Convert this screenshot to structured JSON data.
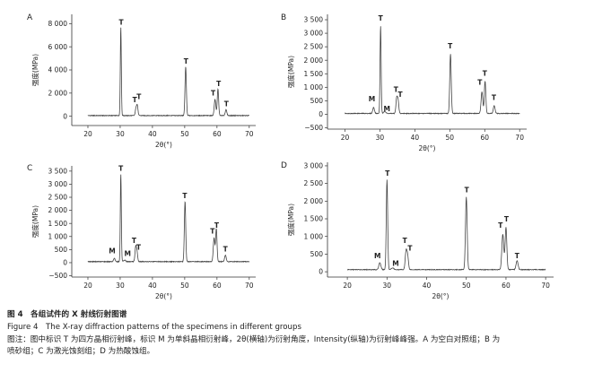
{
  "figure": {
    "title_cn": "图 4　各组试件的 X 射线衍射图谱",
    "title_en": "Figure 4　The X-ray diffraction patterns of the specimens in different groups",
    "note_line1": "图注：图中标识 T 为四方晶相衍射峰，标识 M 为单斜晶相衍射峰，2θ(横轴)为衍射角度，Intensity(纵轴)为衍射峰峰强。A 为空白对照组；B 为",
    "note_line2": "喷砂组；C 为激光蚀刻组；D 为热酸蚀组。"
  },
  "colors": {
    "line": "#444444",
    "text": "#222222"
  },
  "chart_data": [
    {
      "type": "line",
      "panel": "A",
      "xlabel": "2θ(°)",
      "ylabel": "强度(MPa)",
      "xlim": [
        15,
        72
      ],
      "ylim": [
        -800,
        8800
      ],
      "xticks": [
        20,
        30,
        40,
        50,
        60,
        70
      ],
      "yticks": [
        0,
        2000,
        4000,
        6000,
        8000
      ],
      "ytick_labels": [
        "0",
        "2 000",
        "4 000",
        "6 000",
        "8 000"
      ],
      "baseline": 60,
      "peaks": [
        {
          "x": 30.2,
          "y": 7600,
          "w": 0.22
        },
        {
          "x": 34.9,
          "y": 600,
          "w": 0.3
        },
        {
          "x": 35.3,
          "y": 850,
          "w": 0.3
        },
        {
          "x": 50.3,
          "y": 4200,
          "w": 0.3
        },
        {
          "x": 59.4,
          "y": 1400,
          "w": 0.35
        },
        {
          "x": 60.3,
          "y": 2300,
          "w": 0.3
        },
        {
          "x": 62.8,
          "y": 500,
          "w": 0.35
        }
      ],
      "labels": [
        {
          "text": "T",
          "x": 30.3,
          "y": 7900
        },
        {
          "text": "T",
          "x": 34.5,
          "y": 1200
        },
        {
          "text": "T",
          "x": 35.8,
          "y": 1500
        },
        {
          "text": "T",
          "x": 50.4,
          "y": 4550
        },
        {
          "text": "T",
          "x": 58.8,
          "y": 1800
        },
        {
          "text": "T",
          "x": 60.5,
          "y": 2600
        },
        {
          "text": "T",
          "x": 62.9,
          "y": 850
        }
      ]
    },
    {
      "type": "line",
      "panel": "B",
      "xlabel": "2θ(°)",
      "ylabel": "强度(MPa)",
      "xlim": [
        15,
        72
      ],
      "ylim": [
        -550,
        3700
      ],
      "xticks": [
        20,
        30,
        40,
        50,
        60,
        70
      ],
      "yticks": [
        -500,
        0,
        500,
        1000,
        1500,
        2000,
        2500,
        3000,
        3500
      ],
      "ytick_labels": [
        "−500",
        "0",
        "500",
        "1 000",
        "1 500",
        "2 000",
        "2 500",
        "3 000",
        "3 500"
      ],
      "baseline": 30,
      "peaks": [
        {
          "x": 28.2,
          "y": 220,
          "w": 0.35
        },
        {
          "x": 30.2,
          "y": 3250,
          "w": 0.22
        },
        {
          "x": 31.4,
          "y": 80,
          "w": 0.4
        },
        {
          "x": 34.8,
          "y": 550,
          "w": 0.3
        },
        {
          "x": 35.2,
          "y": 450,
          "w": 0.3
        },
        {
          "x": 50.2,
          "y": 2200,
          "w": 0.3
        },
        {
          "x": 59.2,
          "y": 800,
          "w": 0.35
        },
        {
          "x": 60.1,
          "y": 1200,
          "w": 0.3
        },
        {
          "x": 62.7,
          "y": 280,
          "w": 0.35
        }
      ],
      "labels": [
        {
          "text": "M",
          "x": 27.7,
          "y": 480
        },
        {
          "text": "T",
          "x": 30.2,
          "y": 3460
        },
        {
          "text": "M",
          "x": 32.0,
          "y": 120
        },
        {
          "text": "T",
          "x": 34.6,
          "y": 820
        },
        {
          "text": "T",
          "x": 35.8,
          "y": 650
        },
        {
          "text": "T",
          "x": 50.1,
          "y": 2440
        },
        {
          "text": "T",
          "x": 58.6,
          "y": 1090
        },
        {
          "text": "T",
          "x": 60.0,
          "y": 1430
        },
        {
          "text": "T",
          "x": 62.6,
          "y": 530
        }
      ]
    },
    {
      "type": "line",
      "panel": "C",
      "xlabel": "2θ(°)",
      "ylabel": "强度(MPa)",
      "xlim": [
        15,
        72
      ],
      "ylim": [
        -550,
        3700
      ],
      "xticks": [
        20,
        30,
        40,
        50,
        60,
        70
      ],
      "yticks": [
        -500,
        0,
        500,
        1000,
        1500,
        2000,
        2500,
        3000,
        3500
      ],
      "ytick_labels": [
        "−500",
        "0",
        "500",
        "1 000",
        "1 500",
        "2 000",
        "2 500",
        "3 000",
        "3 500"
      ],
      "baseline": 40,
      "peaks": [
        {
          "x": 28.2,
          "y": 120,
          "w": 0.35
        },
        {
          "x": 30.2,
          "y": 3350,
          "w": 0.22
        },
        {
          "x": 31.4,
          "y": 60,
          "w": 0.4
        },
        {
          "x": 34.8,
          "y": 550,
          "w": 0.3
        },
        {
          "x": 35.2,
          "y": 350,
          "w": 0.3
        },
        {
          "x": 50.1,
          "y": 2300,
          "w": 0.3
        },
        {
          "x": 59.1,
          "y": 900,
          "w": 0.35
        },
        {
          "x": 59.8,
          "y": 1250,
          "w": 0.3
        },
        {
          "x": 62.6,
          "y": 250,
          "w": 0.35
        }
      ],
      "labels": [
        {
          "text": "M",
          "x": 27.5,
          "y": 360
        },
        {
          "text": "T",
          "x": 30.2,
          "y": 3510
        },
        {
          "text": "M",
          "x": 32.3,
          "y": 260
        },
        {
          "text": "T",
          "x": 34.3,
          "y": 760
        },
        {
          "text": "T",
          "x": 35.7,
          "y": 500
        },
        {
          "text": "T",
          "x": 50.0,
          "y": 2470
        },
        {
          "text": "T",
          "x": 58.6,
          "y": 1120
        },
        {
          "text": "T",
          "x": 59.9,
          "y": 1340
        },
        {
          "text": "T",
          "x": 62.6,
          "y": 430
        }
      ]
    },
    {
      "type": "line",
      "panel": "D",
      "xlabel": "2θ(°)",
      "ylabel": "强度(MPa)",
      "xlim": [
        15,
        72
      ],
      "ylim": [
        -150,
        3100
      ],
      "xticks": [
        20,
        30,
        40,
        50,
        60,
        70
      ],
      "yticks": [
        0,
        500,
        1000,
        1500,
        2000,
        2500,
        3000
      ],
      "ytick_labels": [
        "0",
        "500",
        "1 000",
        "1 500",
        "2 000",
        "2 500",
        "3 000"
      ],
      "baseline": 60,
      "peaks": [
        {
          "x": 28.2,
          "y": 200,
          "w": 0.35
        },
        {
          "x": 30.0,
          "y": 2550,
          "w": 0.25
        },
        {
          "x": 31.4,
          "y": 50,
          "w": 0.4
        },
        {
          "x": 34.8,
          "y": 500,
          "w": 0.3
        },
        {
          "x": 35.2,
          "y": 380,
          "w": 0.3
        },
        {
          "x": 50.0,
          "y": 2050,
          "w": 0.3
        },
        {
          "x": 59.2,
          "y": 1000,
          "w": 0.35
        },
        {
          "x": 60.0,
          "y": 1200,
          "w": 0.3
        },
        {
          "x": 62.8,
          "y": 250,
          "w": 0.35
        }
      ],
      "labels": [
        {
          "text": "M",
          "x": 27.6,
          "y": 380
        },
        {
          "text": "T",
          "x": 30.1,
          "y": 2720
        },
        {
          "text": "M",
          "x": 32.2,
          "y": 170
        },
        {
          "text": "T",
          "x": 34.5,
          "y": 820
        },
        {
          "text": "T",
          "x": 35.8,
          "y": 600
        },
        {
          "text": "T",
          "x": 50.1,
          "y": 2250
        },
        {
          "text": "T",
          "x": 58.6,
          "y": 1250
        },
        {
          "text": "T",
          "x": 60.1,
          "y": 1430
        },
        {
          "text": "T",
          "x": 62.8,
          "y": 380
        }
      ]
    }
  ]
}
